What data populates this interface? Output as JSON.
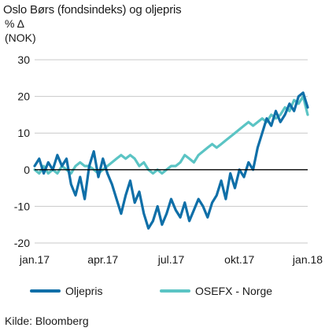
{
  "header": {
    "title": "Oslo Børs (fondsindeks) og oljepris",
    "unit_line1": "% Δ",
    "unit_line2": "(NOK)"
  },
  "footer": {
    "source": "Kilde: Bloomberg"
  },
  "colors": {
    "oljepris": "#0f6fa8",
    "osefx": "#5bc4c4",
    "grid": "#c8c8c8",
    "zero_line": "#000000"
  },
  "chart_data": {
    "type": "line",
    "title": "Oslo Børs (fondsindeks) og oljepris",
    "ylabel": "% Δ (NOK)",
    "xlabel": "",
    "ylim": [
      -20,
      30
    ],
    "yticks": [
      -20,
      -10,
      0,
      10,
      20,
      30
    ],
    "xlim": [
      0,
      12
    ],
    "xticks": [
      {
        "x": 0,
        "label": "jan.17"
      },
      {
        "x": 3,
        "label": "apr.17"
      },
      {
        "x": 6,
        "label": "jul.17"
      },
      {
        "x": 9,
        "label": "okt.17"
      },
      {
        "x": 12,
        "label": "jan.18"
      }
    ],
    "grid": "horizontal",
    "legend": "bottom",
    "series": [
      {
        "name": "Oljepris",
        "color": "#0f6fa8",
        "x": [
          0,
          0.2,
          0.4,
          0.6,
          0.8,
          1.0,
          1.2,
          1.4,
          1.6,
          1.8,
          2.0,
          2.2,
          2.4,
          2.6,
          2.8,
          3.0,
          3.2,
          3.4,
          3.6,
          3.8,
          4.0,
          4.2,
          4.4,
          4.6,
          4.8,
          5.0,
          5.2,
          5.4,
          5.6,
          5.8,
          6.0,
          6.2,
          6.4,
          6.6,
          6.8,
          7.0,
          7.2,
          7.4,
          7.6,
          7.8,
          8.0,
          8.2,
          8.4,
          8.6,
          8.8,
          9.0,
          9.2,
          9.4,
          9.6,
          9.8,
          10.0,
          10.2,
          10.4,
          10.6,
          10.8,
          11.0,
          11.2,
          11.4,
          11.6,
          11.8,
          12.0
        ],
        "values": [
          1,
          3,
          -1,
          2,
          0,
          4,
          1,
          3,
          -4,
          -7,
          -2,
          -8,
          1,
          5,
          -2,
          3,
          -1,
          -4,
          -8,
          -12,
          -7,
          -3,
          -9,
          -6,
          -12,
          -16,
          -14,
          -10,
          -15,
          -12,
          -8,
          -11,
          -13,
          -9,
          -14,
          -11,
          -8,
          -10,
          -13,
          -9,
          -7,
          -3,
          -8,
          -1,
          -5,
          0,
          -2,
          2,
          0,
          6,
          10,
          14,
          12,
          16,
          13,
          15,
          18,
          16,
          20,
          21,
          17
        ]
      },
      {
        "name": "OSEFX - Norge",
        "color": "#5bc4c4",
        "x": [
          0,
          0.2,
          0.4,
          0.6,
          0.8,
          1.0,
          1.2,
          1.4,
          1.6,
          1.8,
          2.0,
          2.2,
          2.4,
          2.6,
          2.8,
          3.0,
          3.2,
          3.4,
          3.6,
          3.8,
          4.0,
          4.2,
          4.4,
          4.6,
          4.8,
          5.0,
          5.2,
          5.4,
          5.6,
          5.8,
          6.0,
          6.2,
          6.4,
          6.6,
          6.8,
          7.0,
          7.2,
          7.4,
          7.6,
          7.8,
          8.0,
          8.2,
          8.4,
          8.6,
          8.8,
          9.0,
          9.2,
          9.4,
          9.6,
          9.8,
          10.0,
          10.2,
          10.4,
          10.6,
          10.8,
          11.0,
          11.2,
          11.4,
          11.6,
          11.8,
          12.0
        ],
        "values": [
          0,
          -1,
          1,
          -1,
          0,
          -1,
          1,
          0,
          -1,
          1,
          2,
          1,
          1,
          0,
          -1,
          0,
          1,
          2,
          3,
          4,
          3,
          4,
          3,
          1,
          2,
          0,
          -1,
          0,
          -1,
          0,
          1,
          1,
          2,
          4,
          3,
          2,
          4,
          5,
          6,
          7,
          6,
          7,
          8,
          9,
          10,
          11,
          12,
          13,
          12,
          13,
          14,
          13,
          15,
          14,
          15,
          17,
          16,
          19,
          18,
          20,
          15
        ]
      }
    ]
  }
}
